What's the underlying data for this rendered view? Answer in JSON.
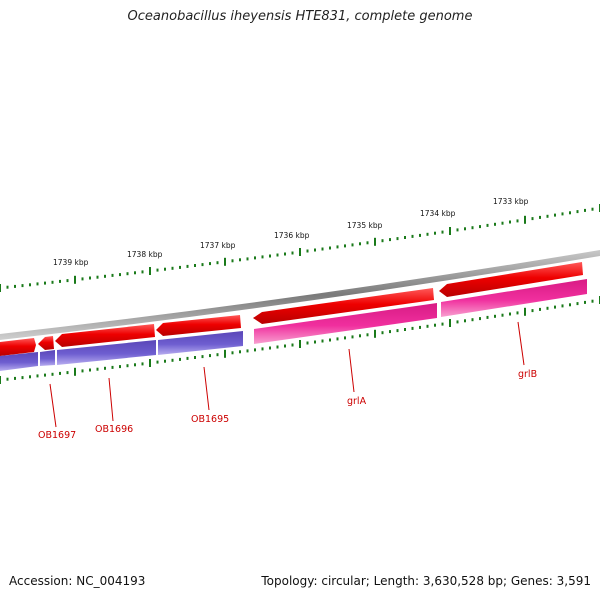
{
  "title": "Oceanobacillus iheyensis HTE831, complete genome",
  "accession_text": "Accession: NC_004193",
  "info_text": "Topology: circular; Length: 3,630,528 bp; Genes: 3,591",
  "colors": {
    "backbone": "#8a8a8a",
    "forward_gene": "#ee0000",
    "reverse_gene_blue": "#6a5acd",
    "reverse_gene_pink": "#ee2a9a",
    "ticks": "#1a7a1a",
    "gene_label": "#cc0000"
  },
  "scale_labels": [
    {
      "text": "1739 kbp",
      "kbp": 1739
    },
    {
      "text": "1738 kbp",
      "kbp": 1738
    },
    {
      "text": "1737 kbp",
      "kbp": 1737
    },
    {
      "text": "1736 kbp",
      "kbp": 1736
    },
    {
      "text": "1735 kbp",
      "kbp": 1735
    },
    {
      "text": "1734 kbp",
      "kbp": 1734
    },
    {
      "text": "1733 kbp",
      "kbp": 1733
    }
  ],
  "gene_labels": [
    "OB1697",
    "OB1696",
    "OB1695",
    "grlA",
    "grlB"
  ]
}
